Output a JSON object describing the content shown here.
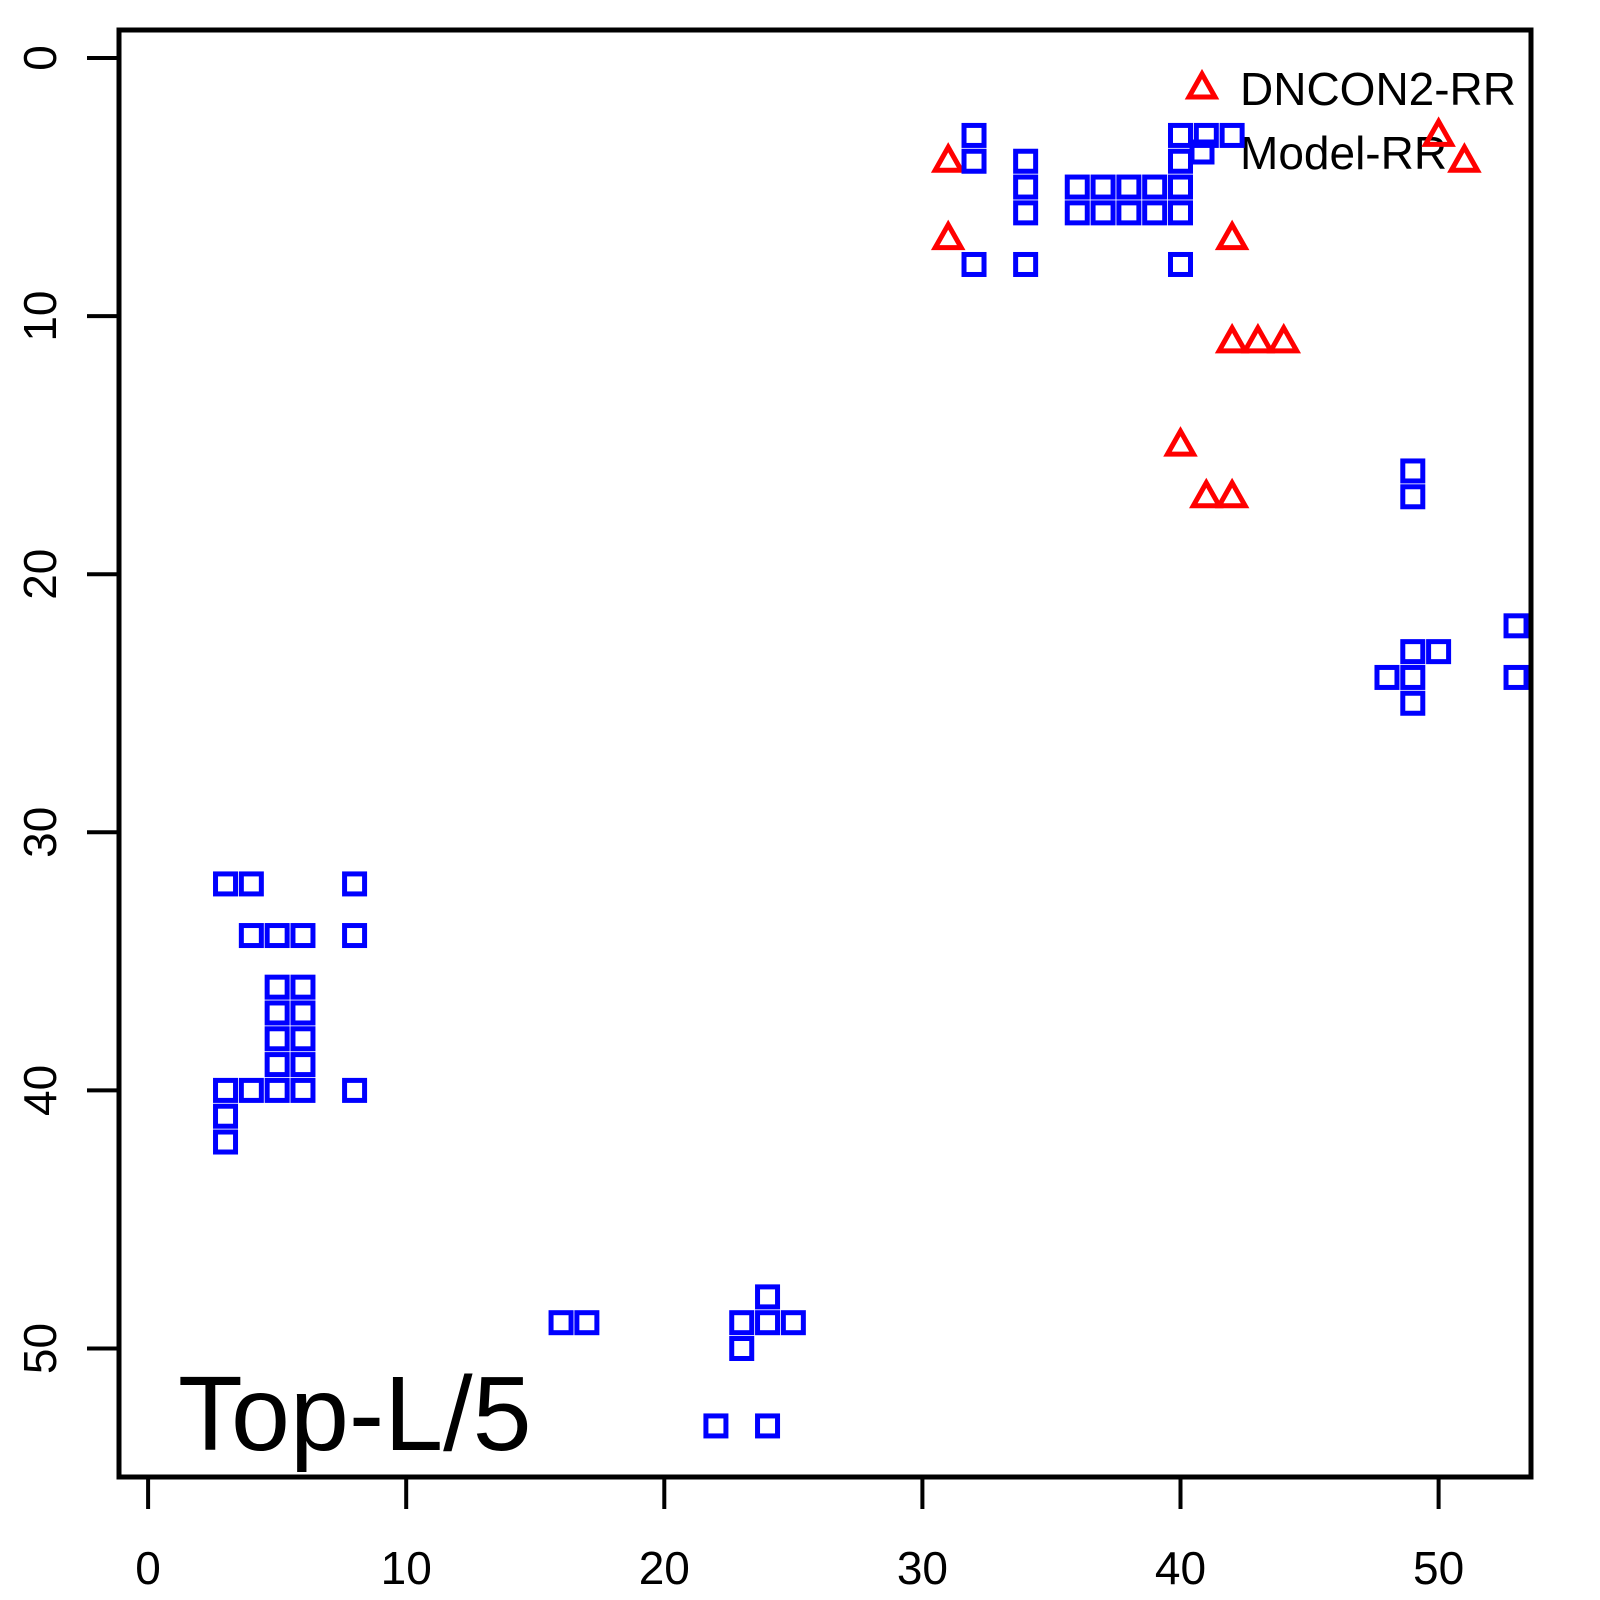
{
  "colors": {
    "background": "#FFFFFF",
    "axis": "#000000",
    "dncon2_rr": "#FF0000",
    "model_rr": "#0000FF",
    "text": "#000000"
  },
  "annotation": {
    "label": "Top-L/5"
  },
  "legend": {
    "items": [
      {
        "label": "DNCON2-RR",
        "marker": "triangle",
        "color": "#FF0000"
      },
      {
        "label": "Model-RR",
        "marker": "square",
        "color": "#0000FF"
      }
    ]
  },
  "chart_data": {
    "type": "scatter",
    "title": "",
    "xlabel": "",
    "ylabel": "",
    "grid": false,
    "x_ticks": [
      0,
      10,
      20,
      30,
      40,
      50
    ],
    "y_ticks": [
      0,
      10,
      20,
      30,
      40,
      50
    ],
    "xlim": [
      -1.1,
      53.6
    ],
    "ylim": [
      55,
      -1.1
    ],
    "y_axis_reversed": true,
    "legend_position": "top-right",
    "annotation": "Top-L/5",
    "series": [
      {
        "name": "DNCON2-RR",
        "marker": "triangle",
        "color": "#FF0000",
        "points": [
          [
            31,
            4
          ],
          [
            31,
            7
          ],
          [
            42,
            7
          ],
          [
            42,
            11
          ],
          [
            43,
            11
          ],
          [
            44,
            11
          ],
          [
            40,
            15
          ],
          [
            41,
            17
          ],
          [
            42,
            17
          ],
          [
            50,
            3
          ],
          [
            51,
            4
          ]
        ]
      },
      {
        "name": "Model-RR",
        "marker": "square",
        "color": "#0000FF",
        "points": [
          [
            32,
            3
          ],
          [
            32,
            4
          ],
          [
            32,
            8
          ],
          [
            34,
            4
          ],
          [
            34,
            5
          ],
          [
            34,
            6
          ],
          [
            34,
            8
          ],
          [
            36,
            5
          ],
          [
            37,
            5
          ],
          [
            38,
            5
          ],
          [
            39,
            5
          ],
          [
            40,
            5
          ],
          [
            36,
            6
          ],
          [
            37,
            6
          ],
          [
            38,
            6
          ],
          [
            39,
            6
          ],
          [
            40,
            6
          ],
          [
            40,
            3
          ],
          [
            41,
            3
          ],
          [
            42,
            3
          ],
          [
            40,
            4
          ],
          [
            40,
            8
          ],
          [
            49,
            16
          ],
          [
            49,
            17
          ],
          [
            53,
            22
          ],
          [
            49,
            23
          ],
          [
            50,
            23
          ],
          [
            48,
            24
          ],
          [
            49,
            24
          ],
          [
            53,
            24
          ],
          [
            49,
            25
          ],
          [
            3,
            32
          ],
          [
            4,
            32
          ],
          [
            8,
            32
          ],
          [
            4,
            34
          ],
          [
            5,
            34
          ],
          [
            6,
            34
          ],
          [
            8,
            34
          ],
          [
            5,
            36
          ],
          [
            6,
            36
          ],
          [
            5,
            37
          ],
          [
            6,
            37
          ],
          [
            5,
            38
          ],
          [
            6,
            38
          ],
          [
            5,
            39
          ],
          [
            6,
            39
          ],
          [
            3,
            40
          ],
          [
            4,
            40
          ],
          [
            5,
            40
          ],
          [
            6,
            40
          ],
          [
            8,
            40
          ],
          [
            3,
            41
          ],
          [
            3,
            42
          ],
          [
            16,
            49
          ],
          [
            17,
            49
          ],
          [
            24,
            48
          ],
          [
            23,
            49
          ],
          [
            24,
            49
          ],
          [
            25,
            49
          ],
          [
            23,
            50
          ],
          [
            22,
            53
          ],
          [
            24,
            53
          ]
        ]
      }
    ]
  }
}
